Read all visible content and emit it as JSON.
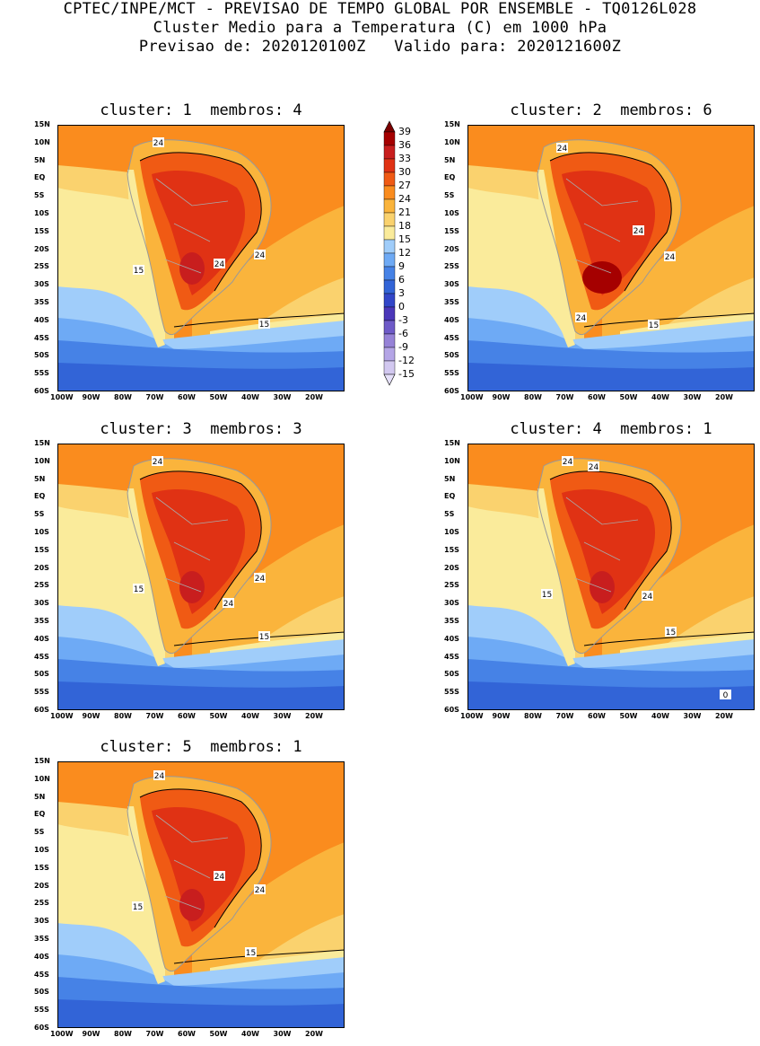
{
  "header": {
    "line1": "CPTEC/INPE/MCT - PREVISAO DE TEMPO GLOBAL POR ENSEMBLE - TQ0126L028",
    "line2": "Cluster Medio para a Temperatura (C) em 1000 hPa",
    "line3": "Previsao de: 2020120100Z   Valido para: 2020121600Z"
  },
  "axes": {
    "lat_ticks": [
      "15N",
      "10N",
      "5N",
      "EQ",
      "5S",
      "10S",
      "15S",
      "20S",
      "25S",
      "30S",
      "35S",
      "40S",
      "45S",
      "50S",
      "55S",
      "60S"
    ],
    "lon_ticks": [
      "100W",
      "90W",
      "80W",
      "70W",
      "60W",
      "50W",
      "40W",
      "30W",
      "20W"
    ]
  },
  "colorbar": {
    "levels": [
      "39",
      "36",
      "33",
      "30",
      "27",
      "24",
      "21",
      "18",
      "15",
      "12",
      "9",
      "6",
      "3",
      "0",
      "-3",
      "-6",
      "-9",
      "-12",
      "-15"
    ],
    "colors": [
      "#7b0000",
      "#a50000",
      "#c81e1e",
      "#e03214",
      "#f05a14",
      "#fa8c1e",
      "#fab43c",
      "#fad26e",
      "#faeb9b",
      "#a0cdfa",
      "#6eaaf5",
      "#4682e6",
      "#3264d7",
      "#3246c8",
      "#4b37b9",
      "#6e5ac8",
      "#9682d7",
      "#b4a5e6",
      "#d2c8f0",
      "#e6e1fa"
    ]
  },
  "clusters": [
    {
      "title": "cluster: 1  membros: 4",
      "labels": [
        "24",
        "24",
        "24",
        "15",
        "15"
      ]
    },
    {
      "title": "cluster: 2  membros: 6",
      "labels": [
        "24",
        "24",
        "24",
        "24",
        "15"
      ]
    },
    {
      "title": "cluster: 3  membros: 3",
      "labels": [
        "24",
        "24",
        "24",
        "15",
        "15"
      ]
    },
    {
      "title": "cluster: 4  membros: 1",
      "labels": [
        "24",
        "24",
        "24",
        "15",
        "15",
        "0"
      ]
    },
    {
      "title": "cluster: 5  membros: 1",
      "labels": [
        "24",
        "24",
        "24",
        "15",
        "15"
      ]
    }
  ]
}
